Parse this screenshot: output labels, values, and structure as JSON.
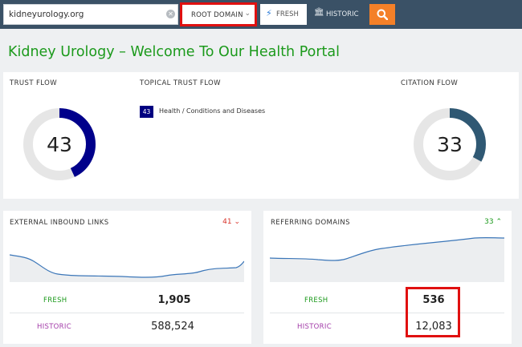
{
  "topbar": {
    "search_value": "kidneyurology.org",
    "clear_icon": "x-circle-icon",
    "scope_label": "ROOT DOMAIN",
    "fresh_label": "FRESH",
    "historic_label": "HISTORIC",
    "search_button_icon": "magnifier-icon",
    "accent_color": "#f48028"
  },
  "page_title": "Kidney Urology – Welcome To Our Health Portal",
  "trust_flow": {
    "label": "TRUST FLOW",
    "value": "43",
    "progress_fraction": 0.43,
    "color": "#00008b"
  },
  "topical_trust_flow": {
    "label": "TOPICAL TRUST FLOW",
    "items": [
      {
        "score": "43",
        "category": "Health / Conditions and Diseases"
      }
    ]
  },
  "citation_flow": {
    "label": "CITATION FLOW",
    "value": "33",
    "progress_fraction": 0.33,
    "color": "#2f5873"
  },
  "external_inbound_links": {
    "label": "EXTERNAL INBOUND LINKS",
    "delta": "41",
    "delta_direction": "down",
    "fresh_label": "FRESH",
    "fresh_value": "1,905",
    "historic_label": "HISTORIC",
    "historic_value": "588,524"
  },
  "referring_domains": {
    "label": "REFERRING DOMAINS",
    "delta": "33",
    "delta_direction": "up",
    "fresh_label": "FRESH",
    "fresh_value": "536",
    "historic_label": "HISTORIC",
    "historic_value": "12,083"
  }
}
